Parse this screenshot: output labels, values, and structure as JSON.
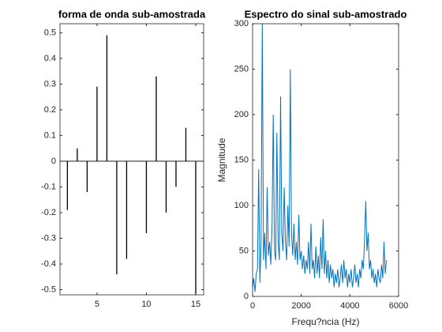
{
  "chart_data": [
    {
      "type": "stem",
      "title": "forma de onda sub-amostrada",
      "color": "#000000",
      "x": [
        2,
        3,
        4,
        5,
        6,
        7,
        8,
        10,
        11,
        12,
        13,
        14,
        15
      ],
      "values": [
        -0.19,
        0.05,
        -0.12,
        0.29,
        0.49,
        -0.44,
        -0.38,
        -0.28,
        0.33,
        -0.2,
        -0.1,
        0.13,
        -0.52
      ],
      "xlim": [
        1.25,
        15.8
      ],
      "xticks": [
        5,
        10,
        15
      ],
      "ylim": [
        -0.52,
        0.535
      ],
      "yticks": [
        -0.5,
        -0.4,
        -0.3,
        -0.2,
        -0.1,
        0,
        0.1,
        0.2,
        0.3,
        0.4,
        0.5
      ]
    },
    {
      "type": "line",
      "title": "Espectro do sinal sub-amostrado",
      "xlabel": "Frequ?ncia (Hz)",
      "ylabel": "Magnitude",
      "color": "#0072bd",
      "x": [
        0,
        50,
        100,
        150,
        200,
        250,
        300,
        350,
        400,
        450,
        500,
        550,
        600,
        650,
        700,
        750,
        800,
        850,
        900,
        950,
        1000,
        1050,
        1100,
        1150,
        1200,
        1250,
        1300,
        1350,
        1400,
        1450,
        1500,
        1550,
        1600,
        1650,
        1700,
        1750,
        1800,
        1850,
        1900,
        1950,
        2000,
        2050,
        2100,
        2150,
        2200,
        2250,
        2300,
        2350,
        2400,
        2450,
        2500,
        2550,
        2600,
        2650,
        2700,
        2750,
        2800,
        2850,
        2900,
        2950,
        3000,
        3050,
        3100,
        3150,
        3200,
        3250,
        3300,
        3350,
        3400,
        3450,
        3500,
        3550,
        3600,
        3650,
        3700,
        3750,
        3800,
        3850,
        3900,
        3950,
        4000,
        4050,
        4100,
        4150,
        4200,
        4250,
        4300,
        4350,
        4400,
        4450,
        4500,
        4550,
        4600,
        4650,
        4700,
        4750,
        4800,
        4850,
        4900,
        4950,
        5000,
        5050,
        5100,
        5150,
        5200,
        5250,
        5300,
        5350,
        5400,
        5450,
        5500
      ],
      "values": [
        10,
        20,
        5,
        25,
        30,
        140,
        15,
        60,
        300,
        40,
        70,
        30,
        120,
        45,
        60,
        35,
        80,
        200,
        50,
        40,
        180,
        60,
        40,
        220,
        70,
        50,
        120,
        60,
        40,
        100,
        55,
        250,
        70,
        45,
        80,
        40,
        60,
        35,
        90,
        40,
        50,
        30,
        45,
        25,
        40,
        30,
        60,
        25,
        80,
        30,
        40,
        20,
        55,
        25,
        45,
        20,
        65,
        30,
        85,
        25,
        50,
        20,
        40,
        15,
        35,
        20,
        30,
        10,
        25,
        15,
        30,
        10,
        20,
        35,
        15,
        40,
        20,
        30,
        10,
        25,
        15,
        30,
        10,
        20,
        35,
        15,
        25,
        10,
        30,
        20,
        40,
        30,
        60,
        105,
        50,
        70,
        30,
        40,
        20,
        30,
        15,
        25,
        10,
        30,
        20,
        15,
        35,
        20,
        60,
        25,
        40
      ],
      "xlim": [
        0,
        6000
      ],
      "xticks": [
        0,
        2000,
        4000,
        6000
      ],
      "ylim": [
        0,
        300
      ],
      "yticks": [
        0,
        50,
        100,
        150,
        200,
        250,
        300
      ]
    }
  ]
}
